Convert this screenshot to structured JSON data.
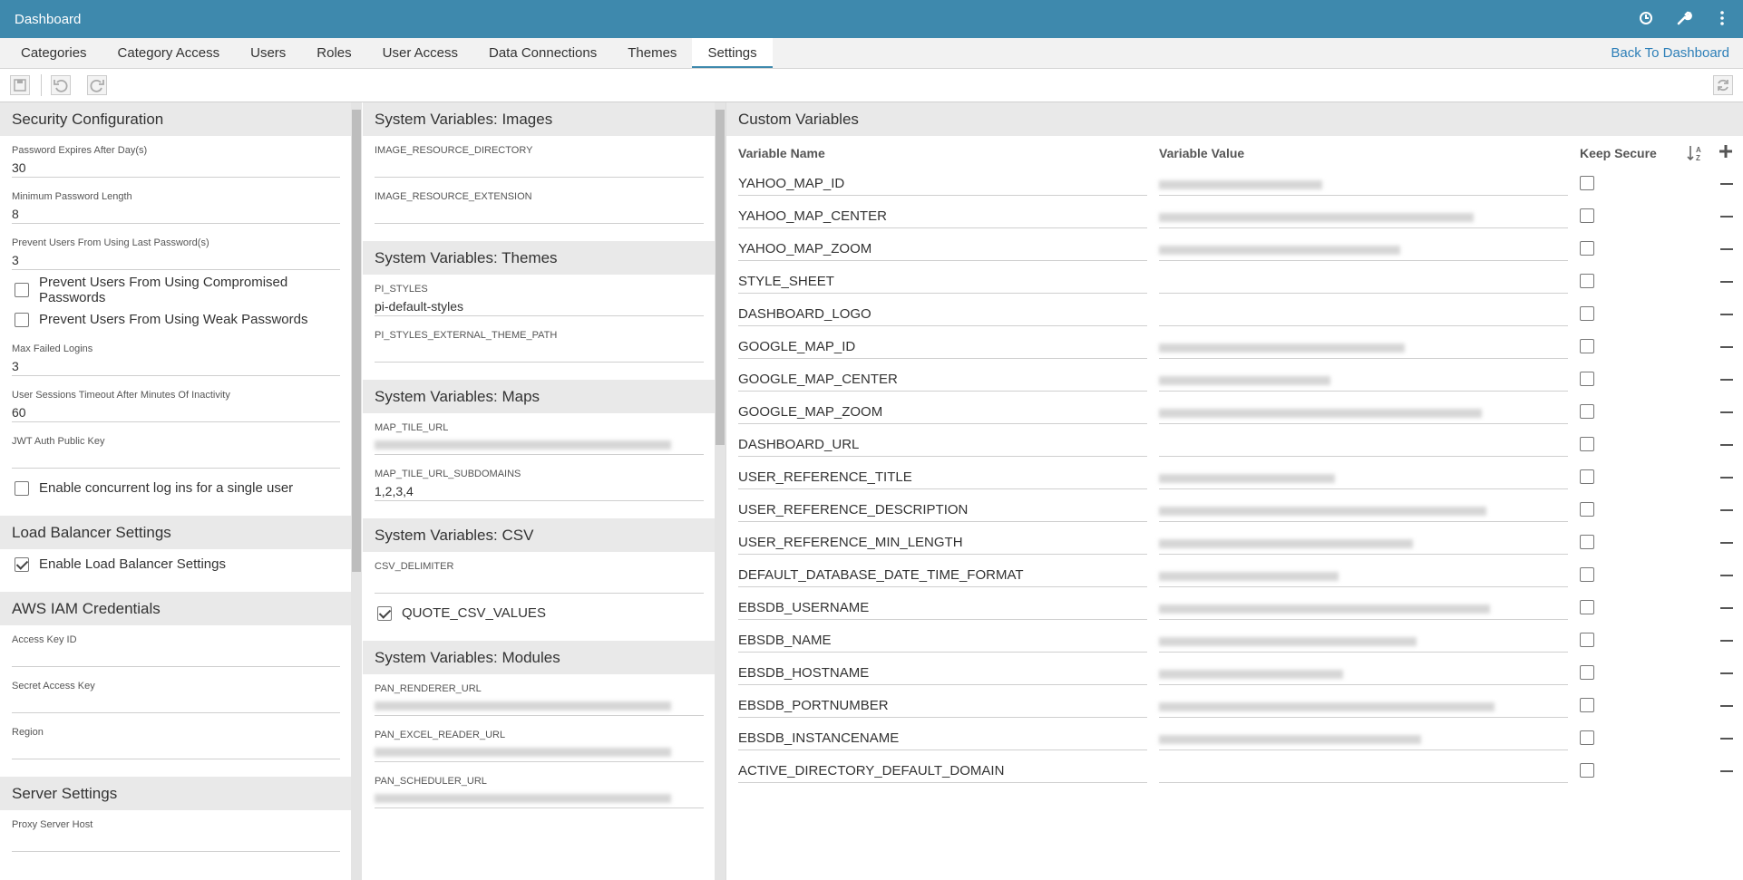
{
  "header": {
    "title": "Dashboard"
  },
  "tabs": [
    "Categories",
    "Category Access",
    "Users",
    "Roles",
    "User Access",
    "Data Connections",
    "Themes",
    "Settings"
  ],
  "back_link": "Back To Dashboard",
  "left_panel": {
    "sections": [
      {
        "title": "Security Configuration",
        "items": [
          {
            "label": "Password Expires After Day(s)",
            "value": "30"
          },
          {
            "label": "Minimum Password Length",
            "value": "8"
          },
          {
            "label": "Prevent Users From Using Last Password(s)",
            "value": "3"
          },
          {
            "label": "Prevent Users From Using Compromised Passwords",
            "checked": false
          },
          {
            "label": "Prevent Users From Using Weak Passwords",
            "checked": false
          },
          {
            "label": "Max Failed Logins",
            "value": "3"
          },
          {
            "label": "User Sessions Timeout After Minutes Of Inactivity",
            "value": "60"
          },
          {
            "label": "JWT Auth Public Key"
          },
          {
            "label": "Enable concurrent log ins for a single user",
            "checked": false
          }
        ]
      },
      {
        "title": "Load Balancer Settings",
        "items": [
          {
            "label": "Enable Load Balancer Settings",
            "checked": true
          }
        ]
      },
      {
        "title": "AWS IAM Credentials",
        "items": [
          {
            "label": "Access Key ID"
          },
          {
            "label": "Secret Access Key"
          },
          {
            "label": "Region"
          }
        ]
      },
      {
        "title": "Server Settings",
        "items": [
          {
            "label": "Proxy Server Host"
          }
        ]
      }
    ]
  },
  "middle_panel": {
    "sections": [
      {
        "title": "System Variables: Images",
        "items": [
          {
            "label": "IMAGE_RESOURCE_DIRECTORY"
          },
          {
            "label": "IMAGE_RESOURCE_EXTENSION"
          }
        ]
      },
      {
        "title": "System Variables: Themes",
        "items": [
          {
            "label": "PI_STYLES",
            "value": "pi-default-styles"
          },
          {
            "label": "PI_STYLES_EXTERNAL_THEME_PATH"
          }
        ]
      },
      {
        "title": "System Variables: Maps",
        "items": [
          {
            "label": "MAP_TILE_URL",
            "redacted": true
          },
          {
            "label": "MAP_TILE_URL_SUBDOMAINS",
            "value": "1,2,3,4"
          }
        ]
      },
      {
        "title": "System Variables: CSV",
        "items": [
          {
            "label": "CSV_DELIMITER"
          },
          {
            "label": "QUOTE_CSV_VALUES",
            "checked": true
          }
        ]
      },
      {
        "title": "System Variables: Modules",
        "items": [
          {
            "label": "PAN_RENDERER_URL",
            "redacted": true
          },
          {
            "label": "PAN_EXCEL_READER_URL",
            "redacted": true
          },
          {
            "label": "PAN_SCHEDULER_URL",
            "redacted": true
          }
        ]
      }
    ]
  },
  "custom_variables": {
    "title": "Custom Variables",
    "columns": [
      "Variable Name",
      "Variable Value",
      "Keep Secure"
    ],
    "rows": [
      {
        "name": "YAHOO_MAP_ID",
        "redacted": true,
        "keep_secure": false
      },
      {
        "name": "YAHOO_MAP_CENTER",
        "redacted": true,
        "keep_secure": false
      },
      {
        "name": "YAHOO_MAP_ZOOM",
        "redacted": true,
        "keep_secure": false
      },
      {
        "name": "STYLE_SHEET",
        "keep_secure": false
      },
      {
        "name": "DASHBOARD_LOGO",
        "keep_secure": false
      },
      {
        "name": "GOOGLE_MAP_ID",
        "redacted": true,
        "keep_secure": false
      },
      {
        "name": "GOOGLE_MAP_CENTER",
        "redacted": true,
        "keep_secure": false
      },
      {
        "name": "GOOGLE_MAP_ZOOM",
        "redacted": true,
        "keep_secure": false
      },
      {
        "name": "DASHBOARD_URL",
        "keep_secure": false
      },
      {
        "name": "USER_REFERENCE_TITLE",
        "redacted": true,
        "keep_secure": false
      },
      {
        "name": "USER_REFERENCE_DESCRIPTION",
        "redacted": true,
        "keep_secure": false
      },
      {
        "name": "USER_REFERENCE_MIN_LENGTH",
        "redacted": true,
        "keep_secure": false
      },
      {
        "name": "DEFAULT_DATABASE_DATE_TIME_FORMAT",
        "redacted": true,
        "keep_secure": false
      },
      {
        "name": "EBSDB_USERNAME",
        "redacted": true,
        "keep_secure": false
      },
      {
        "name": "EBSDB_NAME",
        "redacted": true,
        "keep_secure": false
      },
      {
        "name": "EBSDB_HOSTNAME",
        "redacted": true,
        "keep_secure": false
      },
      {
        "name": "EBSDB_PORTNUMBER",
        "redacted": true,
        "keep_secure": false
      },
      {
        "name": "EBSDB_INSTANCENAME",
        "redacted": true,
        "keep_secure": false
      },
      {
        "name": "ACTIVE_DIRECTORY_DEFAULT_DOMAIN",
        "keep_secure": false
      }
    ]
  }
}
